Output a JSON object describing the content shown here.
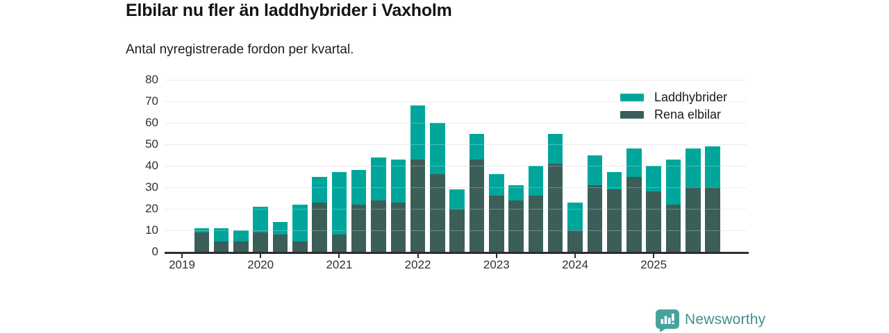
{
  "header": {
    "title": "Elbilar nu fler än laddhybrider i Vaxholm",
    "subtitle": "Antal nyregistrerade fordon per kvartal."
  },
  "legend": {
    "items": [
      {
        "label": "Laddhybrider",
        "color": "#00a69b"
      },
      {
        "label": "Rena elbilar",
        "color": "#3c5e59"
      }
    ]
  },
  "chart_data": {
    "type": "bar",
    "stacked": true,
    "title": "Elbilar nu fler än laddhybrider i Vaxholm",
    "subtitle": "Antal nyregistrerade fordon per kvartal.",
    "categories": [
      "2019 Q1",
      "2019 Q2",
      "2019 Q3",
      "2019 Q4",
      "2020 Q1",
      "2020 Q2",
      "2020 Q3",
      "2020 Q4",
      "2021 Q1",
      "2021 Q2",
      "2021 Q3",
      "2021 Q4",
      "2022 Q1",
      "2022 Q2",
      "2022 Q3",
      "2022 Q4",
      "2023 Q1",
      "2023 Q2",
      "2023 Q3",
      "2023 Q4",
      "2024 Q1",
      "2024 Q2",
      "2024 Q3",
      "2024 Q4",
      "2025 Q1",
      "2025 Q2",
      "2025 Q3",
      "2025 Q4"
    ],
    "series": [
      {
        "name": "Rena elbilar",
        "color": "#3c5e59",
        "values": [
          0,
          9,
          5,
          5,
          9,
          8,
          5,
          23,
          8,
          22,
          24,
          23,
          43,
          36,
          20,
          43,
          26,
          24,
          26,
          41,
          10,
          31,
          29,
          35,
          28,
          22,
          30,
          30
        ]
      },
      {
        "name": "Laddhybrider",
        "color": "#00a69b",
        "values": [
          0,
          2,
          6,
          5,
          12,
          6,
          17,
          12,
          29,
          16,
          20,
          20,
          25,
          24,
          9,
          12,
          10,
          7,
          14,
          14,
          13,
          14,
          8,
          13,
          12,
          21,
          18,
          19
        ]
      }
    ],
    "totals": [
      0,
      11,
      11,
      10,
      21,
      14,
      22,
      35,
      37,
      38,
      44,
      43,
      68,
      60,
      29,
      55,
      36,
      31,
      40,
      55,
      23,
      45,
      37,
      48,
      40,
      43,
      48,
      49
    ],
    "xlabel": "",
    "ylabel": "",
    "ylim": [
      0,
      80
    ],
    "yticks": [
      0,
      10,
      20,
      30,
      40,
      50,
      60,
      70,
      80
    ],
    "xticklabels": [
      "2019",
      "2020",
      "2021",
      "2022",
      "2023",
      "2024",
      "2025"
    ],
    "grid": true,
    "legend_position": "top-right"
  },
  "footer": {
    "brand": "Newsworthy",
    "brand_color": "#3f918c",
    "logo_icon": "newsworthy-bar-chart-speech-bubble-icon",
    "logo_badge_color": "#45a39d"
  }
}
